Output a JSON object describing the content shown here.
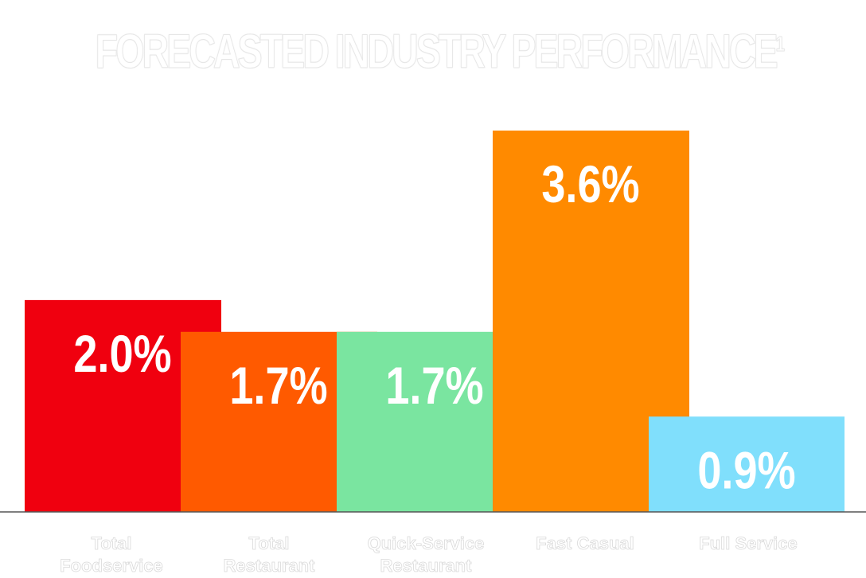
{
  "chart_data": {
    "type": "bar",
    "title": "FORECASTED INDUSTRY PERFORMANCE",
    "title_superscript": "1",
    "categories": [
      [
        "Total",
        "Foodservice"
      ],
      [
        "Total",
        "Restaurant"
      ],
      [
        "Quick-Service",
        "Restaurant"
      ],
      [
        "Fast Casual"
      ],
      [
        "Full Service"
      ]
    ],
    "values": [
      2.0,
      1.7,
      1.7,
      3.6,
      0.9
    ],
    "data_labels": [
      "2.0%",
      "1.7%",
      "1.7%",
      "3.6%",
      "0.9%"
    ],
    "colors": [
      "#f0000f",
      "#ff5a00",
      "#7ae5a0",
      "#ff8a00",
      "#80dffc"
    ],
    "ylim": [
      0,
      3.6
    ],
    "xlabel": "",
    "ylabel": "",
    "grid": false,
    "legend": "none"
  }
}
